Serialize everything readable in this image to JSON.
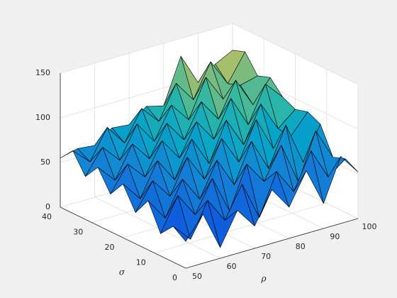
{
  "chart_data": {
    "type": "surface",
    "xlabel": "ρ",
    "ylabel": "σ",
    "x": [
      50,
      55,
      60,
      65,
      70,
      75,
      80,
      85,
      90,
      95,
      100
    ],
    "y": [
      0,
      4,
      8,
      12,
      16,
      20,
      24,
      28,
      32,
      36,
      40
    ],
    "z": [
      [
        30,
        55,
        12,
        48,
        25,
        60,
        35,
        70,
        28,
        75,
        52
      ],
      [
        40,
        20,
        58,
        30,
        65,
        22,
        68,
        40,
        80,
        45,
        60
      ],
      [
        25,
        62,
        35,
        70,
        28,
        75,
        50,
        85,
        38,
        90,
        55
      ],
      [
        55,
        30,
        68,
        40,
        78,
        45,
        88,
        52,
        95,
        48,
        85
      ],
      [
        35,
        65,
        42,
        80,
        50,
        90,
        58,
        100,
        62,
        70,
        92
      ],
      [
        60,
        38,
        75,
        48,
        88,
        55,
        98,
        65,
        105,
        72,
        88
      ],
      [
        42,
        70,
        50,
        85,
        60,
        95,
        70,
        110,
        75,
        115,
        95
      ],
      [
        65,
        45,
        80,
        58,
        92,
        68,
        105,
        80,
        118,
        85,
        110
      ],
      [
        48,
        75,
        55,
        90,
        65,
        100,
        78,
        120,
        90,
        100,
        105
      ],
      [
        70,
        52,
        85,
        62,
        95,
        75,
        112,
        88,
        125,
        95,
        125
      ],
      [
        55,
        60,
        58,
        72,
        70,
        85,
        80,
        130,
        95,
        110,
        120
      ]
    ],
    "colormap": "parula",
    "xlim": [
      50,
      100
    ],
    "ylim": [
      0,
      40
    ],
    "zlim": [
      0,
      150
    ],
    "xticks": [
      50,
      60,
      70,
      80,
      90,
      100
    ],
    "yticks": [
      0,
      10,
      20,
      30,
      40
    ],
    "zticks": [
      0,
      50,
      100,
      150
    ],
    "grid": true
  }
}
